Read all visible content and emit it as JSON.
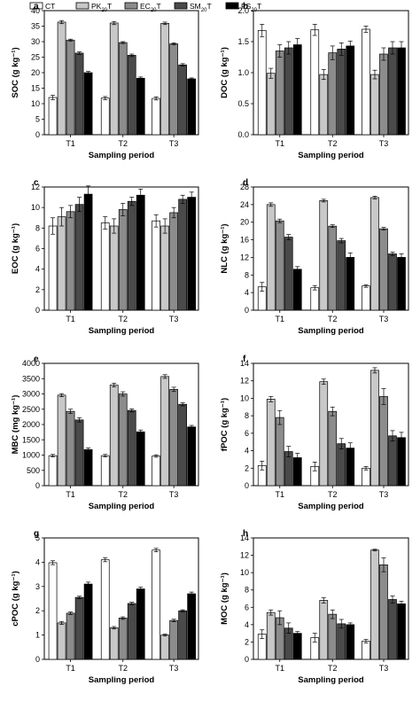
{
  "legend": {
    "entries": [
      {
        "name": "CT",
        "sub": "",
        "tail": "",
        "color": "#ffffff"
      },
      {
        "name": "PK",
        "sub": "20",
        "tail": "T",
        "color": "#c8c8c8"
      },
      {
        "name": "EC",
        "sub": "20",
        "tail": "T",
        "color": "#8c8c8c"
      },
      {
        "name": "SM",
        "sub": "20",
        "tail": "T",
        "color": "#4a4a4a"
      },
      {
        "name": "PS",
        "sub": "20",
        "tail": "T",
        "color": "#000000"
      }
    ]
  },
  "chart_data": [
    {
      "panel": "a",
      "type": "bar",
      "categories": [
        "T1",
        "T2",
        "T3"
      ],
      "xlabel": "Sampling period",
      "ylabel": "SOC (g kg⁻¹)",
      "ylim": [
        0,
        40
      ],
      "yticks": [
        0,
        5,
        10,
        15,
        20,
        25,
        30,
        35,
        40
      ],
      "series": [
        {
          "name": "CT",
          "values": [
            12.0,
            11.8,
            11.7
          ],
          "errors": [
            0.7,
            0.5,
            0.5
          ]
        },
        {
          "name": "PK20T",
          "values": [
            36.3,
            36.0,
            35.9
          ],
          "errors": [
            0.5,
            0.5,
            0.4
          ]
        },
        {
          "name": "EC20T",
          "values": [
            30.5,
            29.7,
            29.3
          ],
          "errors": [
            0.3,
            0.3,
            0.3
          ]
        },
        {
          "name": "SM20T",
          "values": [
            26.3,
            25.6,
            22.5
          ],
          "errors": [
            0.4,
            0.4,
            0.4
          ]
        },
        {
          "name": "PS20T",
          "values": [
            20.0,
            18.2,
            18.0
          ],
          "errors": [
            0.4,
            0.4,
            0.3
          ]
        }
      ]
    },
    {
      "panel": "b",
      "type": "bar",
      "categories": [
        "T1",
        "T2",
        "T3"
      ],
      "xlabel": "Sampling period",
      "ylabel": "DOC (g kg⁻¹)",
      "ylim": [
        0,
        2.0
      ],
      "yticks": [
        0.0,
        0.5,
        1.0,
        1.5,
        2.0
      ],
      "series": [
        {
          "name": "CT",
          "values": [
            1.68,
            1.69,
            1.7
          ],
          "errors": [
            0.1,
            0.09,
            0.05
          ]
        },
        {
          "name": "PK20T",
          "values": [
            0.99,
            0.97,
            0.97
          ],
          "errors": [
            0.08,
            0.08,
            0.07
          ]
        },
        {
          "name": "EC20T",
          "values": [
            1.35,
            1.32,
            1.3
          ],
          "errors": [
            0.1,
            0.11,
            0.1
          ]
        },
        {
          "name": "SM20T",
          "values": [
            1.4,
            1.38,
            1.4
          ],
          "errors": [
            0.1,
            0.1,
            0.1
          ]
        },
        {
          "name": "PS20T",
          "values": [
            1.45,
            1.43,
            1.4
          ],
          "errors": [
            0.1,
            0.08,
            0.1
          ]
        }
      ]
    },
    {
      "panel": "c",
      "type": "bar",
      "categories": [
        "T1",
        "T2",
        "T3"
      ],
      "xlabel": "Sampling period",
      "ylabel": "EOC (g kg⁻¹)",
      "ylim": [
        0,
        12
      ],
      "yticks": [
        0,
        2,
        4,
        6,
        8,
        10,
        12
      ],
      "series": [
        {
          "name": "CT",
          "values": [
            8.2,
            8.5,
            8.7
          ],
          "errors": [
            0.8,
            0.6,
            0.6
          ]
        },
        {
          "name": "PK20T",
          "values": [
            9.1,
            8.2,
            8.2
          ],
          "errors": [
            0.9,
            0.7,
            0.7
          ]
        },
        {
          "name": "EC20T",
          "values": [
            9.6,
            9.8,
            9.5
          ],
          "errors": [
            0.6,
            0.6,
            0.5
          ]
        },
        {
          "name": "SM20T",
          "values": [
            10.3,
            10.6,
            10.8
          ],
          "errors": [
            0.7,
            0.4,
            0.4
          ]
        },
        {
          "name": "PS20T",
          "values": [
            11.3,
            11.2,
            11.0
          ],
          "errors": [
            0.8,
            0.6,
            0.5
          ]
        }
      ]
    },
    {
      "panel": "d",
      "type": "bar",
      "categories": [
        "T1",
        "T2",
        "T3"
      ],
      "xlabel": "Sampling period",
      "ylabel": "NLC (g kg⁻¹)",
      "ylim": [
        0,
        28
      ],
      "yticks": [
        0,
        4,
        8,
        12,
        16,
        20,
        24,
        28
      ],
      "series": [
        {
          "name": "CT",
          "values": [
            5.3,
            5.1,
            5.5
          ],
          "errors": [
            1.0,
            0.5,
            0.3
          ]
        },
        {
          "name": "PK20T",
          "values": [
            24.0,
            24.9,
            25.6
          ],
          "errors": [
            0.4,
            0.3,
            0.3
          ]
        },
        {
          "name": "EC20T",
          "values": [
            20.3,
            19.1,
            18.5
          ],
          "errors": [
            0.4,
            0.3,
            0.3
          ]
        },
        {
          "name": "SM20T",
          "values": [
            16.6,
            15.8,
            12.8
          ],
          "errors": [
            0.6,
            0.5,
            0.4
          ]
        },
        {
          "name": "PS20T",
          "values": [
            9.3,
            12.0,
            12.0
          ],
          "errors": [
            0.6,
            1.0,
            0.8
          ]
        }
      ]
    },
    {
      "panel": "e",
      "type": "bar",
      "categories": [
        "T1",
        "T2",
        "T3"
      ],
      "xlabel": "Sampling period",
      "ylabel": "MBC (mg kg⁻¹)",
      "ylim": [
        0,
        4000
      ],
      "yticks": [
        0,
        500,
        1000,
        1500,
        2000,
        2500,
        3000,
        3500,
        4000
      ],
      "series": [
        {
          "name": "CT",
          "values": [
            980,
            980,
            970
          ],
          "errors": [
            40,
            40,
            40
          ]
        },
        {
          "name": "PK20T",
          "values": [
            2960,
            3290,
            3570
          ],
          "errors": [
            50,
            60,
            60
          ]
        },
        {
          "name": "EC20T",
          "values": [
            2430,
            3000,
            3150
          ],
          "errors": [
            70,
            70,
            70
          ]
        },
        {
          "name": "SM20T",
          "values": [
            2150,
            2460,
            2660
          ],
          "errors": [
            70,
            50,
            50
          ]
        },
        {
          "name": "PS20T",
          "values": [
            1180,
            1760,
            1920
          ],
          "errors": [
            50,
            60,
            50
          ]
        }
      ]
    },
    {
      "panel": "f",
      "type": "bar",
      "categories": [
        "T1",
        "T2",
        "T3"
      ],
      "xlabel": "Sampling period",
      "ylabel": "fPOC (g kg⁻¹)",
      "ylim": [
        0,
        14
      ],
      "yticks": [
        0,
        2,
        4,
        6,
        8,
        10,
        12,
        14
      ],
      "series": [
        {
          "name": "CT",
          "values": [
            2.3,
            2.2,
            2.0
          ],
          "errors": [
            0.5,
            0.5,
            0.2
          ]
        },
        {
          "name": "PK20T",
          "values": [
            9.9,
            11.9,
            13.2
          ],
          "errors": [
            0.3,
            0.3,
            0.3
          ]
        },
        {
          "name": "EC20T",
          "values": [
            7.8,
            8.5,
            10.2
          ],
          "errors": [
            0.8,
            0.5,
            0.9
          ]
        },
        {
          "name": "SM20T",
          "values": [
            3.9,
            4.8,
            5.7
          ],
          "errors": [
            0.6,
            0.6,
            0.6
          ]
        },
        {
          "name": "PS20T",
          "values": [
            3.2,
            4.3,
            5.5
          ],
          "errors": [
            0.5,
            0.6,
            0.6
          ]
        }
      ]
    },
    {
      "panel": "g",
      "type": "bar",
      "categories": [
        "T1",
        "T2",
        "T3"
      ],
      "xlabel": "Sampling period",
      "ylabel": "cPOC (g kg⁻¹)",
      "ylim": [
        0,
        5
      ],
      "yticks": [
        0,
        1,
        2,
        3,
        4,
        5
      ],
      "series": [
        {
          "name": "CT",
          "values": [
            3.98,
            4.1,
            4.5
          ],
          "errors": [
            0.08,
            0.08,
            0.07
          ]
        },
        {
          "name": "PK20T",
          "values": [
            1.5,
            1.3,
            1.0
          ],
          "errors": [
            0.06,
            0.05,
            0.04
          ]
        },
        {
          "name": "EC20T",
          "values": [
            1.9,
            1.7,
            1.6
          ],
          "errors": [
            0.05,
            0.05,
            0.05
          ]
        },
        {
          "name": "SM20T",
          "values": [
            2.55,
            2.3,
            2.0
          ],
          "errors": [
            0.05,
            0.05,
            0.04
          ]
        },
        {
          "name": "PS20T",
          "values": [
            3.1,
            2.9,
            2.7
          ],
          "errors": [
            0.08,
            0.07,
            0.07
          ]
        }
      ]
    },
    {
      "panel": "h",
      "type": "bar",
      "categories": [
        "T1",
        "T2",
        "T3"
      ],
      "xlabel": "Sampling period",
      "ylabel": "MOC (g kg⁻¹)",
      "ylim": [
        0,
        14
      ],
      "yticks": [
        0,
        2,
        4,
        6,
        8,
        10,
        12,
        14
      ],
      "series": [
        {
          "name": "CT",
          "values": [
            2.9,
            2.5,
            2.1
          ],
          "errors": [
            0.5,
            0.5,
            0.2
          ]
        },
        {
          "name": "PK20T",
          "values": [
            5.4,
            6.8,
            12.6
          ],
          "errors": [
            0.3,
            0.3,
            0.1
          ]
        },
        {
          "name": "EC20T",
          "values": [
            4.8,
            5.2,
            10.9
          ],
          "errors": [
            0.8,
            0.5,
            0.8
          ]
        },
        {
          "name": "SM20T",
          "values": [
            3.6,
            4.1,
            6.9
          ],
          "errors": [
            0.6,
            0.5,
            0.4
          ]
        },
        {
          "name": "PS20T",
          "values": [
            3.0,
            4.0,
            6.4
          ],
          "errors": [
            0.2,
            0.2,
            0.3
          ]
        }
      ]
    }
  ]
}
